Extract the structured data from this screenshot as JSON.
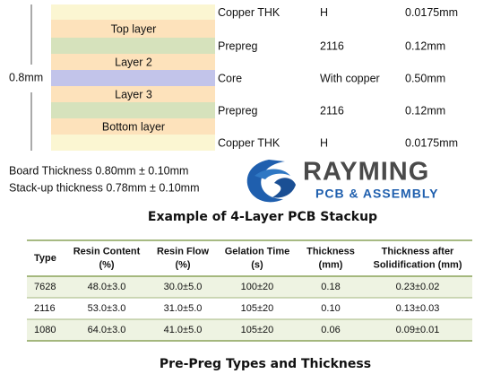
{
  "stackup": {
    "total_label": "0.8mm",
    "layers": [
      {
        "name": null,
        "material": "Copper THK",
        "spec": "H",
        "thickness": "0.0175mm"
      },
      {
        "name": "Top layer",
        "material": null,
        "spec": null,
        "thickness": null
      },
      {
        "name": null,
        "material": "Prepreg",
        "spec": "2116",
        "thickness": "0.12mm"
      },
      {
        "name": "Layer 2",
        "material": null,
        "spec": null,
        "thickness": null
      },
      {
        "name": null,
        "material": "Core",
        "spec": "With copper",
        "thickness": "0.50mm"
      },
      {
        "name": "Layer 3",
        "material": null,
        "spec": null,
        "thickness": null
      },
      {
        "name": null,
        "material": "Prepreg",
        "spec": "2116",
        "thickness": "0.12mm"
      },
      {
        "name": "Bottom layer",
        "material": null,
        "spec": null,
        "thickness": null
      },
      {
        "name": null,
        "material": "Copper THK",
        "spec": "H",
        "thickness": "0.0175mm"
      }
    ],
    "notes": [
      "Board Thickness 0.80mm ± 0.10mm",
      "Stack-up thickness 0.78mm ± 0.10mm"
    ],
    "caption": "Example of 4-Layer PCB Stackup"
  },
  "logo": {
    "name": "RAYMING",
    "tagline": "PCB & ASSEMBLY"
  },
  "table": {
    "header": [
      [
        "Type"
      ],
      [
        "Resin Content",
        "(%)"
      ],
      [
        "Resin Flow",
        "(%)"
      ],
      [
        "Gelation Time",
        "(s)"
      ],
      [
        "Thickness",
        "(mm)"
      ],
      [
        "Thickness after",
        "Solidification (mm)"
      ]
    ],
    "rows": [
      [
        "7628",
        "48.0±3.0",
        "30.0±5.0",
        "100±20",
        "0.18",
        "0.23±0.02"
      ],
      [
        "2116",
        "53.0±3.0",
        "31.0±5.0",
        "105±20",
        "0.10",
        "0.13±0.03"
      ],
      [
        "1080",
        "64.0±3.0",
        "41.0±5.0",
        "105±20",
        "0.06",
        "0.09±0.01"
      ]
    ],
    "caption": "Pre-Preg Types and Thickness"
  }
}
